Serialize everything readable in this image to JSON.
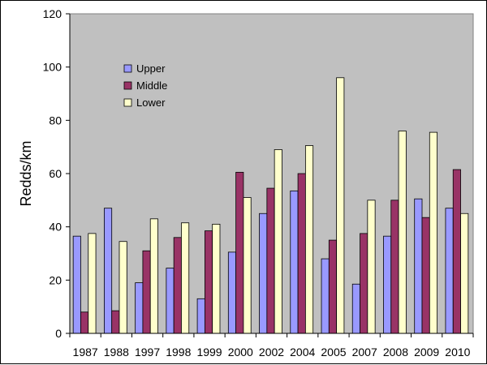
{
  "chart_data": {
    "type": "bar",
    "title": "",
    "xlabel": "",
    "ylabel": "Redds/km",
    "ylim": [
      0,
      120
    ],
    "yticks": [
      0,
      20,
      40,
      60,
      80,
      100,
      120
    ],
    "grid": false,
    "legend_position": "top-left",
    "plot_background": "#c0c0c0",
    "categories": [
      "1987",
      "1988",
      "1997",
      "1998",
      "1999",
      "2000",
      "2002",
      "2004",
      "2005",
      "2007",
      "2008",
      "2009",
      "2010"
    ],
    "series": [
      {
        "name": "Upper",
        "color": "#9999ff",
        "values": [
          36.5,
          47,
          19,
          24.5,
          13,
          30.5,
          45,
          53.5,
          28,
          18.5,
          36.5,
          50.5,
          47
        ]
      },
      {
        "name": "Middle",
        "color": "#993366",
        "values": [
          8,
          8.5,
          31,
          36,
          38.5,
          60.5,
          54.5,
          60,
          35,
          37.5,
          50,
          43.5,
          61.5
        ]
      },
      {
        "name": "Lower",
        "color": "#ffffcc",
        "values": [
          37.5,
          34.5,
          43,
          41.5,
          41,
          51,
          69,
          70.5,
          96,
          50,
          76,
          75.5,
          45
        ]
      }
    ]
  }
}
